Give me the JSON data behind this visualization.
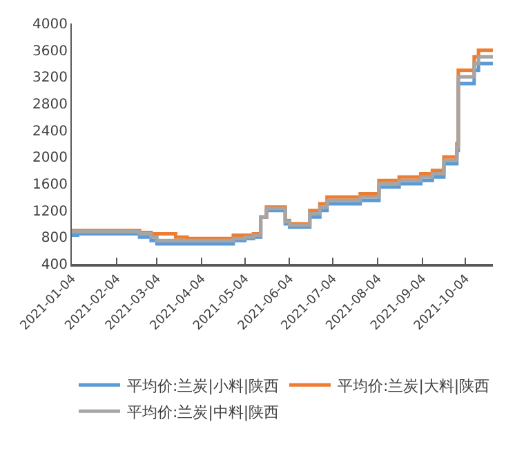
{
  "chart_data": {
    "type": "step",
    "x": [
      "2021-01-04",
      "2021-01-08",
      "2021-02-20",
      "2021-02-28",
      "2021-03-04",
      "2021-03-17",
      "2021-03-25",
      "2021-04-26",
      "2021-05-04",
      "2021-05-10",
      "2021-05-15",
      "2021-05-19",
      "2021-05-27",
      "2021-06-01",
      "2021-06-04",
      "2021-06-18",
      "2021-06-25",
      "2021-06-30",
      "2021-07-23",
      "2021-08-05",
      "2021-08-19",
      "2021-09-03",
      "2021-09-11",
      "2021-09-19",
      "2021-09-25",
      "2021-09-28",
      "2021-09-29",
      "2021-10-10",
      "2021-10-13",
      "2021-10-23"
    ],
    "series": [
      {
        "name": "平均价:兰炭|小料|陕西",
        "color": "#5b9bd5",
        "values": [
          830,
          850,
          800,
          750,
          700,
          700,
          700,
          750,
          780,
          800,
          1100,
          1200,
          1200,
          1000,
          950,
          1100,
          1200,
          1300,
          1350,
          1550,
          1600,
          1650,
          1700,
          1900,
          1900,
          2100,
          3100,
          3300,
          3400,
          3400
        ]
      },
      {
        "name": "平均价:兰炭|大料|陕西",
        "color": "#ed7d31",
        "values": [
          900,
          900,
          870,
          850,
          850,
          800,
          780,
          830,
          830,
          850,
          1100,
          1250,
          1250,
          1050,
          1000,
          1200,
          1300,
          1400,
          1450,
          1650,
          1700,
          1750,
          1800,
          2000,
          2000,
          2200,
          3300,
          3500,
          3600,
          3600
        ]
      },
      {
        "name": "平均价:兰炭|中料|陕西",
        "color": "#a5a5a5",
        "values": [
          880,
          880,
          850,
          800,
          750,
          750,
          750,
          780,
          800,
          830,
          1100,
          1230,
          1230,
          1030,
          980,
          1150,
          1250,
          1350,
          1400,
          1600,
          1650,
          1700,
          1750,
          1950,
          1950,
          2150,
          3200,
          3400,
          3500,
          3500
        ]
      }
    ],
    "xlim": [
      "2021-01-04",
      "2021-10-23"
    ],
    "xticks": [
      "2021-01-04",
      "2021-02-04",
      "2021-03-04",
      "2021-04-04",
      "2021-05-04",
      "2021-06-04",
      "2021-07-04",
      "2021-08-04",
      "2021-09-04",
      "2021-10-04"
    ],
    "ylim": [
      400,
      4000
    ],
    "yticks": [
      400,
      800,
      1200,
      1600,
      2000,
      2400,
      2800,
      3200,
      3600,
      4000
    ],
    "legend": "bottom",
    "marker": "none",
    "line_style": "solid"
  }
}
